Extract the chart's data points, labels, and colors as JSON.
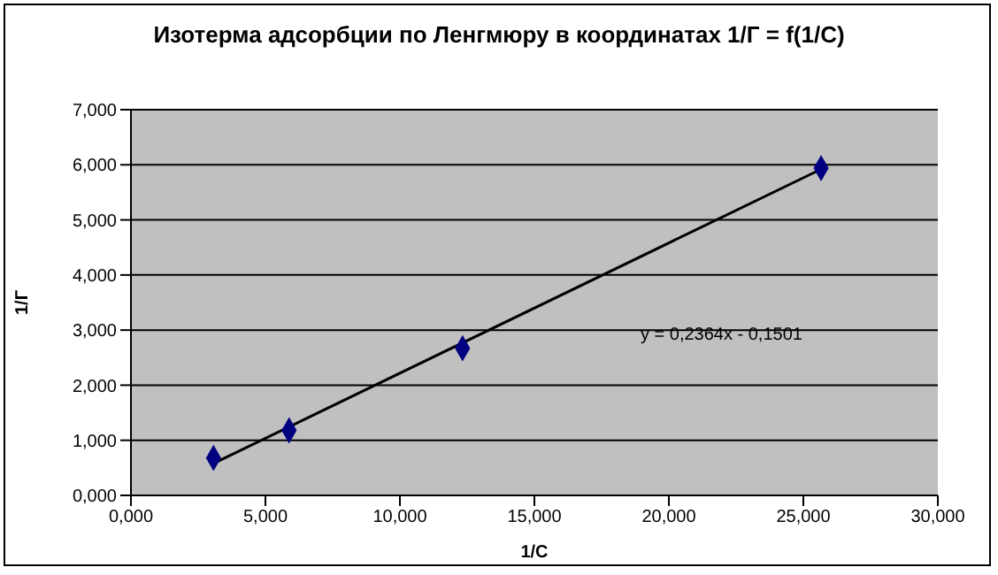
{
  "chart_data": {
    "type": "scatter",
    "title": "Изотерма адсорбции по Ленгмюру в координатах 1/Г = f(1/С)",
    "xlabel": "1/С",
    "ylabel": "1/Г",
    "x": [
      3.07,
      5.88,
      12.33,
      25.66
    ],
    "series": [
      {
        "color": "#000080",
        "values": [
          0.68,
          1.18,
          2.67,
          5.94
        ],
        "marker": "diamond"
      },
      {
        "type": "line",
        "color": "#000000",
        "x": [
          3.07,
          25.66
        ],
        "values": [
          0.58,
          5.92
        ],
        "marker": "none",
        "line_style": "solid"
      }
    ],
    "xlim": [
      0,
      30
    ],
    "xticks": [
      {
        "value": 0,
        "label": "0,000"
      },
      {
        "value": 5,
        "label": "5,000"
      },
      {
        "value": 10,
        "label": "10,000"
      },
      {
        "value": 15,
        "label": "15,000"
      },
      {
        "value": 20,
        "label": "20,000"
      },
      {
        "value": 25,
        "label": "25,000"
      },
      {
        "value": 30,
        "label": "30,000"
      }
    ],
    "ylim": [
      0,
      7
    ],
    "yticks": [
      {
        "value": 0,
        "label": "0,000"
      },
      {
        "value": 1,
        "label": "1,000"
      },
      {
        "value": 2,
        "label": "2,000"
      },
      {
        "value": 3,
        "label": "3,000"
      },
      {
        "value": 4,
        "label": "4,000"
      },
      {
        "value": 5,
        "label": "5,000"
      },
      {
        "value": 6,
        "label": "6,000"
      },
      {
        "value": 7,
        "label": "7,000"
      }
    ],
    "grid": "y",
    "annotations": [
      "y = 0,2364x - 0,1501"
    ]
  }
}
